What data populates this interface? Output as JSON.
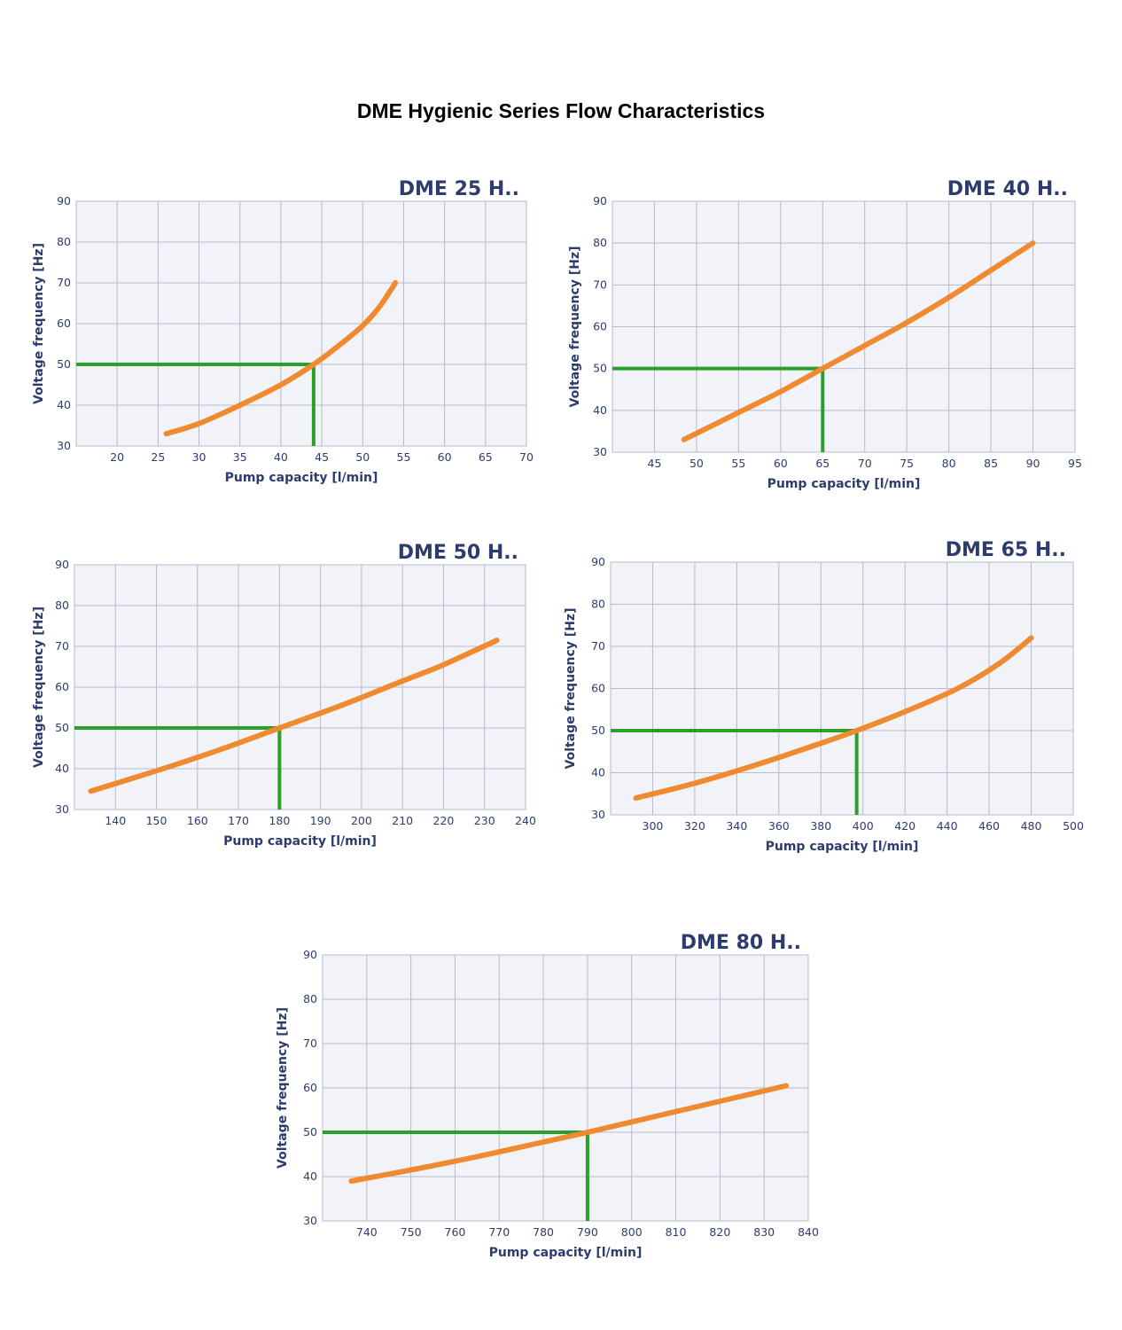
{
  "page_title": "DME Hygienic Series Flow Characteristics",
  "colors": {
    "curve": "#f08a30",
    "marker": "#2aa02a",
    "grid": "#b7bac8",
    "plot_bg": "#f2f3f8",
    "label": "#2d3c6e"
  },
  "chart_data": [
    {
      "type": "line",
      "title": "DME 25 H..",
      "xlabel": "Pump capacity [l/min]",
      "ylabel": "Voltage frequency [Hz]",
      "xlim": [
        15,
        70
      ],
      "ylim": [
        30,
        90
      ],
      "x_ticks": [
        20,
        25,
        30,
        35,
        40,
        45,
        50,
        55,
        60,
        65,
        70
      ],
      "y_ticks": [
        30,
        40,
        50,
        60,
        70,
        80,
        90
      ],
      "grid": true,
      "series": [
        {
          "name": "curve",
          "x": [
            26,
            30,
            35,
            40,
            44,
            47,
            50,
            52,
            54
          ],
          "y": [
            33,
            35.5,
            40,
            45,
            50,
            54.5,
            59.5,
            64,
            70
          ]
        }
      ],
      "operating_point": {
        "x": 44,
        "y": 50
      }
    },
    {
      "type": "line",
      "title": "DME 40 H..",
      "xlabel": "Pump capacity [l/min]",
      "ylabel": "Voltage frequency [Hz]",
      "xlim": [
        40,
        95
      ],
      "ylim": [
        30,
        90
      ],
      "x_ticks": [
        45,
        50,
        55,
        60,
        65,
        70,
        75,
        80,
        85,
        90,
        95
      ],
      "y_ticks": [
        30,
        40,
        50,
        60,
        70,
        80,
        90
      ],
      "grid": true,
      "series": [
        {
          "name": "curve",
          "x": [
            48.5,
            55,
            60,
            65,
            70,
            75,
            80,
            85,
            90
          ],
          "y": [
            33,
            39.5,
            44.5,
            50,
            55.5,
            61,
            67,
            73.5,
            80
          ]
        }
      ],
      "operating_point": {
        "x": 65,
        "y": 50
      }
    },
    {
      "type": "line",
      "title": "DME 50 H..",
      "xlabel": "Pump capacity [l/min]",
      "ylabel": "Voltage frequency [Hz]",
      "xlim": [
        130,
        240
      ],
      "ylim": [
        30,
        90
      ],
      "x_ticks": [
        140,
        150,
        160,
        170,
        180,
        190,
        200,
        210,
        220,
        230,
        240
      ],
      "y_ticks": [
        30,
        40,
        50,
        60,
        70,
        80,
        90
      ],
      "grid": true,
      "series": [
        {
          "name": "curve",
          "x": [
            134,
            150,
            165,
            180,
            195,
            210,
            220,
            233
          ],
          "y": [
            34.5,
            39.5,
            44.5,
            50,
            55.5,
            61.5,
            65.5,
            71.5
          ]
        }
      ],
      "operating_point": {
        "x": 180,
        "y": 50
      }
    },
    {
      "type": "line",
      "title": "DME 65 H..",
      "xlabel": "Pump capacity [l/min]",
      "ylabel": "Voltage frequency [Hz]",
      "xlim": [
        280,
        500
      ],
      "ylim": [
        30,
        90
      ],
      "x_ticks": [
        300,
        320,
        340,
        360,
        380,
        400,
        420,
        440,
        460,
        480,
        500
      ],
      "y_ticks": [
        30,
        40,
        50,
        60,
        70,
        80,
        90
      ],
      "grid": true,
      "series": [
        {
          "name": "curve",
          "x": [
            292,
            320,
            350,
            380,
            397,
            420,
            445,
            465,
            480
          ],
          "y": [
            34,
            37.5,
            42,
            47,
            50,
            54.5,
            60,
            66,
            72
          ]
        }
      ],
      "operating_point": {
        "x": 397,
        "y": 50
      }
    },
    {
      "type": "line",
      "title": "DME 80 H..",
      "xlabel": "Pump capacity [l/min]",
      "ylabel": "Voltage frequency [Hz]",
      "xlim": [
        730,
        840
      ],
      "ylim": [
        30,
        90
      ],
      "x_ticks": [
        740,
        750,
        760,
        770,
        780,
        790,
        800,
        810,
        820,
        830,
        840
      ],
      "y_ticks": [
        30,
        40,
        50,
        60,
        70,
        80,
        90
      ],
      "grid": true,
      "series": [
        {
          "name": "curve",
          "x": [
            736.5,
            750,
            765,
            780,
            790,
            805,
            820,
            835
          ],
          "y": [
            39,
            41.5,
            44.5,
            47.8,
            50,
            53.5,
            57,
            60.5
          ]
        }
      ],
      "operating_point": {
        "x": 790,
        "y": 50
      }
    }
  ]
}
